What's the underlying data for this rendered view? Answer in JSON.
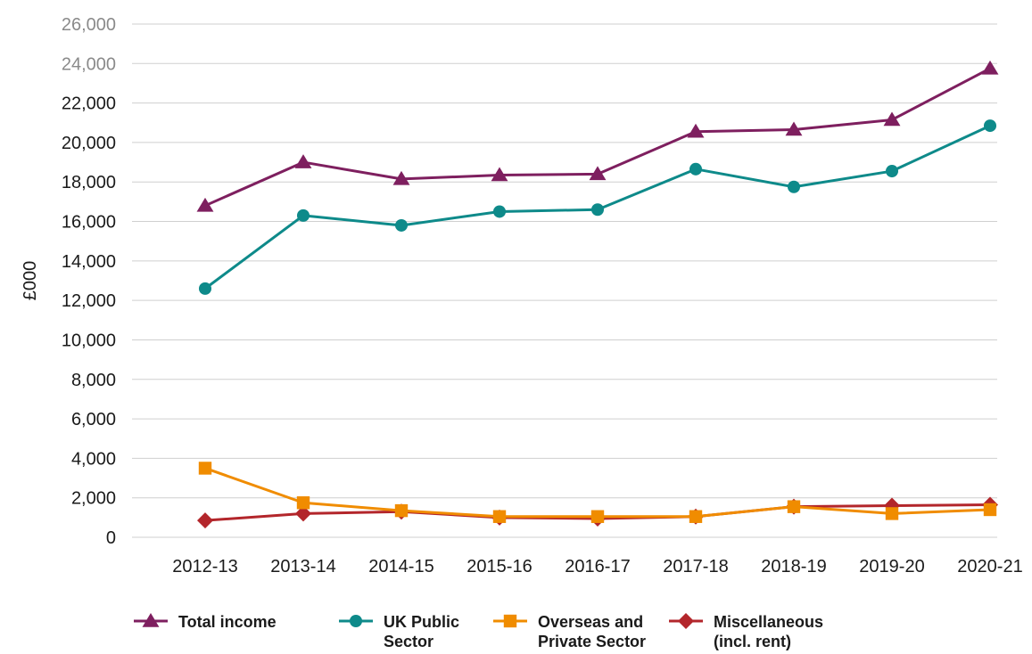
{
  "chart_data": {
    "type": "line",
    "ylabel": "£000",
    "xlabel": "",
    "ylim": [
      0,
      26000
    ],
    "y_ticks": [
      "0",
      "2,000",
      "4,000",
      "6,000",
      "8,000",
      "10,000",
      "12,000",
      "14,000",
      "16,000",
      "18,000",
      "20,000",
      "22,000",
      "24,000",
      "26,000"
    ],
    "y_tick_values": [
      0,
      2000,
      4000,
      6000,
      8000,
      10000,
      12000,
      14000,
      16000,
      18000,
      20000,
      22000,
      24000,
      26000
    ],
    "grid": true,
    "legend_position": "bottom",
    "categories": [
      "2012-13",
      "2013-14",
      "2014-15",
      "2015-16",
      "2016-17",
      "2017-18",
      "2018-19",
      "2019-20",
      "2020-21"
    ],
    "series": [
      {
        "name": "Total income",
        "legend_lines": [
          "Total income"
        ],
        "color": "#7e1f5f",
        "marker": "triangle",
        "values": [
          16800,
          19000,
          18150,
          18350,
          18400,
          20550,
          20650,
          21150,
          23750
        ]
      },
      {
        "name": "UK Public Sector",
        "legend_lines": [
          "UK Public",
          "Sector"
        ],
        "color": "#0e8a8a",
        "marker": "circle",
        "values": [
          12600,
          16300,
          15800,
          16500,
          16600,
          18650,
          17750,
          18550,
          20850
        ]
      },
      {
        "name": "Overseas and Private Sector",
        "legend_lines": [
          "Overseas and",
          "Private Sector"
        ],
        "color": "#f08c00",
        "marker": "square",
        "values": [
          3500,
          1750,
          1350,
          1050,
          1050,
          1050,
          1550,
          1200,
          1400
        ]
      },
      {
        "name": "Miscellaneous (incl. rent)",
        "legend_lines": [
          "Miscellaneous",
          "(incl. rent)"
        ],
        "color": "#b3262b",
        "marker": "diamond",
        "values": [
          850,
          1200,
          1300,
          1000,
          950,
          1050,
          1550,
          1600,
          1650
        ]
      }
    ]
  }
}
